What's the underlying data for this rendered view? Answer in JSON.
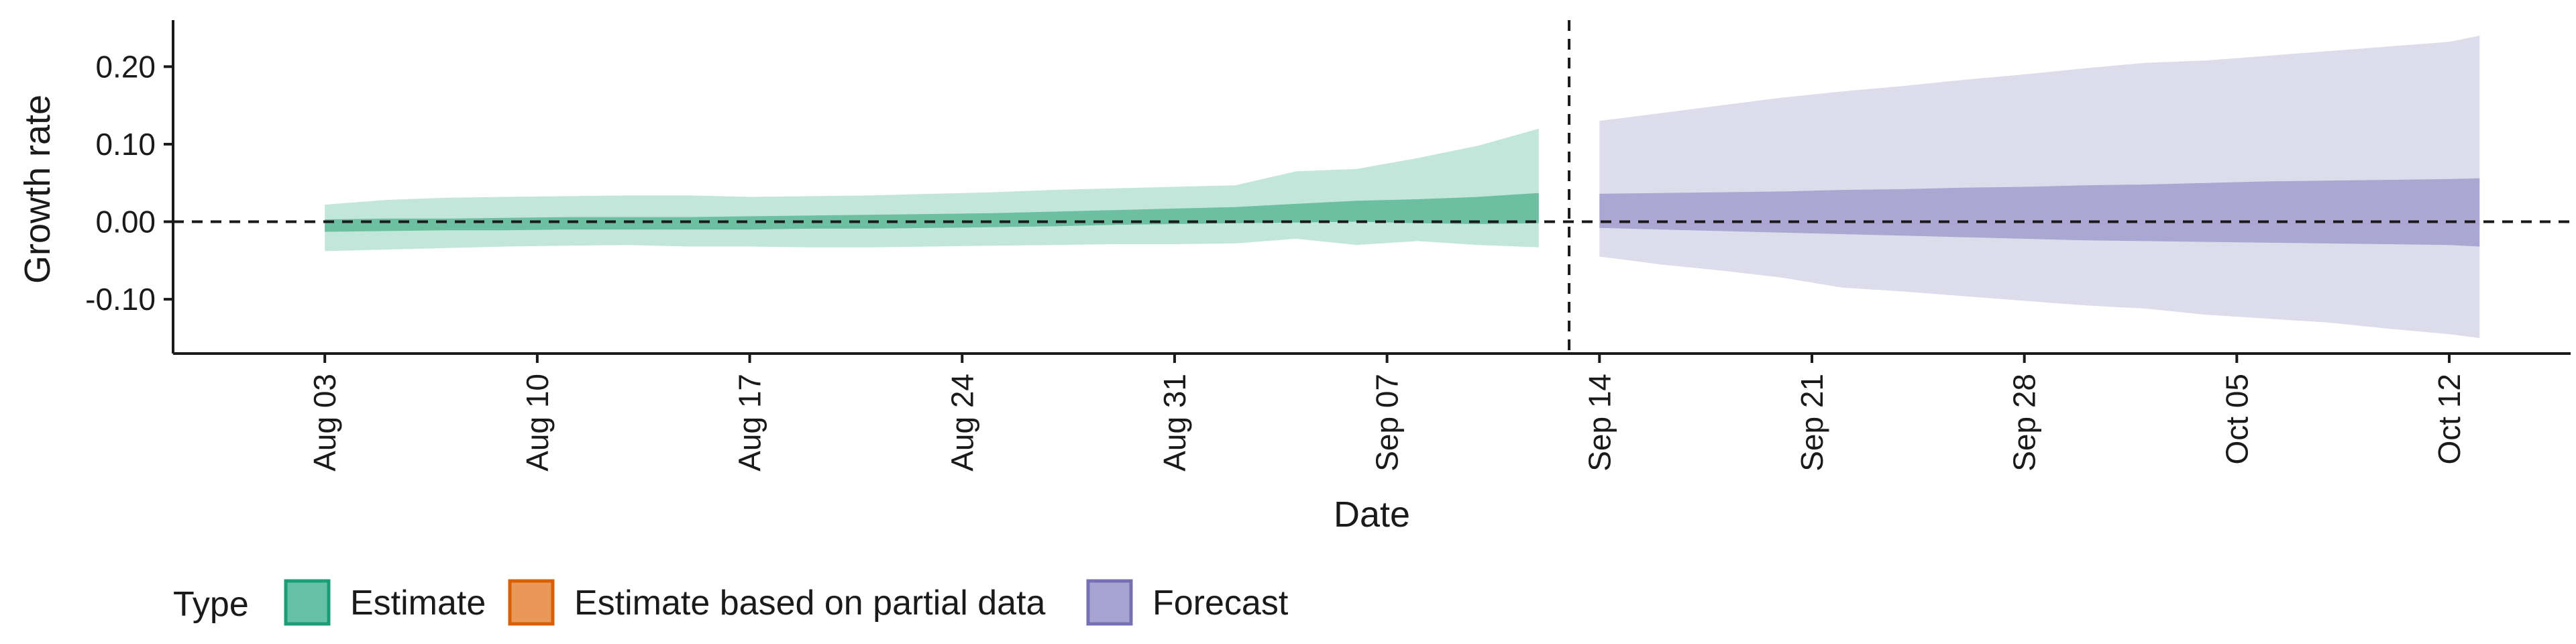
{
  "chart_data": {
    "type": "area",
    "xlabel": "Date",
    "ylabel": "Growth rate",
    "ylim": [
      -0.17,
      0.26
    ],
    "xlim": [
      "2020-07-29",
      "2020-10-16"
    ],
    "y_ticks": [
      {
        "value": 0.2,
        "label": "0.20"
      },
      {
        "value": 0.1,
        "label": "0.10"
      },
      {
        "value": 0.0,
        "label": "0.00"
      },
      {
        "value": -0.1,
        "label": "-0.10"
      }
    ],
    "x_ticks": [
      {
        "value": "2020-08-03",
        "label": "Aug 03"
      },
      {
        "value": "2020-08-10",
        "label": "Aug 10"
      },
      {
        "value": "2020-08-17",
        "label": "Aug 17"
      },
      {
        "value": "2020-08-24",
        "label": "Aug 24"
      },
      {
        "value": "2020-08-31",
        "label": "Aug 31"
      },
      {
        "value": "2020-09-07",
        "label": "Sep 07"
      },
      {
        "value": "2020-09-14",
        "label": "Sep 14"
      },
      {
        "value": "2020-09-21",
        "label": "Sep 21"
      },
      {
        "value": "2020-09-28",
        "label": "Sep 28"
      },
      {
        "value": "2020-10-05",
        "label": "Oct 05"
      },
      {
        "value": "2020-10-12",
        "label": "Oct 12"
      }
    ],
    "reference_lines": [
      {
        "axis": "y",
        "value": 0.0,
        "style": "dashed"
      },
      {
        "axis": "x",
        "value": "2020-09-13",
        "style": "dashed"
      }
    ],
    "legend": {
      "title": "Type",
      "position": "bottom",
      "entries": [
        {
          "label": "Estimate",
          "fill": "#66C2A5",
          "stroke": "#1B9E77"
        },
        {
          "label": "Estimate based on partial data",
          "fill": "#E9985A",
          "stroke": "#D95F02"
        },
        {
          "label": "Forecast",
          "fill": "#A9A3D1",
          "stroke": "#7570B3"
        }
      ]
    },
    "series": [
      {
        "type_label": "Estimate",
        "outer_color": "#C3E6DA",
        "inner_color": "#6CBFA0",
        "x": [
          "2020-08-03",
          "2020-08-05",
          "2020-08-07",
          "2020-08-09",
          "2020-08-11",
          "2020-08-13",
          "2020-08-15",
          "2020-08-17",
          "2020-08-19",
          "2020-08-21",
          "2020-08-23",
          "2020-08-25",
          "2020-08-27",
          "2020-08-29",
          "2020-08-31",
          "2020-09-02",
          "2020-09-04",
          "2020-09-06",
          "2020-09-08",
          "2020-09-10",
          "2020-09-12"
        ],
        "outer_low": [
          -0.038,
          -0.036,
          -0.034,
          -0.032,
          -0.031,
          -0.03,
          -0.032,
          -0.032,
          -0.033,
          -0.033,
          -0.032,
          -0.031,
          -0.03,
          -0.029,
          -0.029,
          -0.028,
          -0.022,
          -0.03,
          -0.025,
          -0.03,
          -0.033
        ],
        "outer_high": [
          0.022,
          0.028,
          0.031,
          0.032,
          0.033,
          0.034,
          0.034,
          0.032,
          0.033,
          0.034,
          0.036,
          0.038,
          0.041,
          0.043,
          0.045,
          0.047,
          0.065,
          0.068,
          0.082,
          0.098,
          0.12
        ],
        "inner_low": [
          -0.013,
          -0.012,
          -0.011,
          -0.011,
          -0.01,
          -0.01,
          -0.01,
          -0.01,
          -0.009,
          -0.009,
          -0.008,
          -0.007,
          -0.006,
          -0.004,
          -0.003,
          -0.002,
          -0.001,
          0.0,
          -0.002,
          -0.003,
          -0.002
        ],
        "inner_high": [
          0.003,
          0.004,
          0.004,
          0.005,
          0.006,
          0.006,
          0.006,
          0.007,
          0.008,
          0.009,
          0.01,
          0.011,
          0.013,
          0.015,
          0.017,
          0.019,
          0.023,
          0.027,
          0.029,
          0.032,
          0.037
        ]
      },
      {
        "type_label": "Forecast",
        "outer_color": "#DDDCEB",
        "inner_color": "#ABA6D2",
        "x": [
          "2020-09-14",
          "2020-09-16",
          "2020-09-18",
          "2020-09-20",
          "2020-09-22",
          "2020-09-24",
          "2020-09-26",
          "2020-09-28",
          "2020-09-30",
          "2020-10-02",
          "2020-10-04",
          "2020-10-06",
          "2020-10-08",
          "2020-10-10",
          "2020-10-12",
          "2020-10-13"
        ],
        "outer_low": [
          -0.045,
          -0.055,
          -0.063,
          -0.072,
          -0.085,
          -0.09,
          -0.096,
          -0.102,
          -0.108,
          -0.112,
          -0.12,
          -0.125,
          -0.13,
          -0.138,
          -0.145,
          -0.15
        ],
        "outer_high": [
          0.13,
          0.14,
          0.15,
          0.16,
          0.168,
          0.175,
          0.183,
          0.19,
          0.198,
          0.205,
          0.208,
          0.214,
          0.22,
          0.226,
          0.232,
          0.24
        ],
        "inner_low": [
          -0.008,
          -0.01,
          -0.012,
          -0.014,
          -0.016,
          -0.018,
          -0.02,
          -0.022,
          -0.024,
          -0.025,
          -0.026,
          -0.027,
          -0.028,
          -0.029,
          -0.03,
          -0.032
        ],
        "inner_high": [
          0.036,
          0.037,
          0.038,
          0.039,
          0.041,
          0.042,
          0.044,
          0.045,
          0.047,
          0.048,
          0.05,
          0.052,
          0.053,
          0.054,
          0.055,
          0.056
        ]
      }
    ]
  }
}
